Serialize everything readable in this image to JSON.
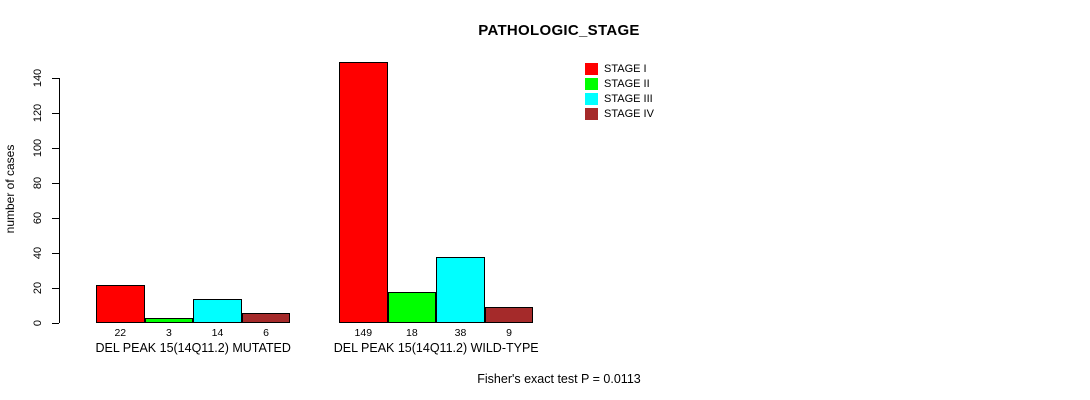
{
  "page": {
    "background": "#ffffff"
  },
  "chart_data": {
    "type": "bar",
    "title": "PATHOLOGIC_STAGE",
    "xlabel": "",
    "ylabel": "number of cases",
    "ylim": [
      0,
      140
    ],
    "yticks": [
      0,
      20,
      40,
      60,
      80,
      100,
      120,
      140
    ],
    "grid": false,
    "legend_position": "top-right",
    "bar_value_labels": true,
    "series": [
      {
        "name": "STAGE I",
        "color": "#FF0000"
      },
      {
        "name": "STAGE II",
        "color": "#00FF00"
      },
      {
        "name": "STAGE III",
        "color": "#00FFFF"
      },
      {
        "name": "STAGE IV",
        "color": "#A52A2A"
      }
    ],
    "groups": [
      {
        "label": "DEL PEAK 15(14Q11.2) MUTATED",
        "values": [
          22,
          3,
          14,
          6
        ]
      },
      {
        "label": "DEL PEAK 15(14Q11.2) WILD-TYPE",
        "values": [
          149,
          18,
          38,
          9
        ]
      }
    ],
    "annotation": "Fisher's exact test P = 0.0113"
  }
}
